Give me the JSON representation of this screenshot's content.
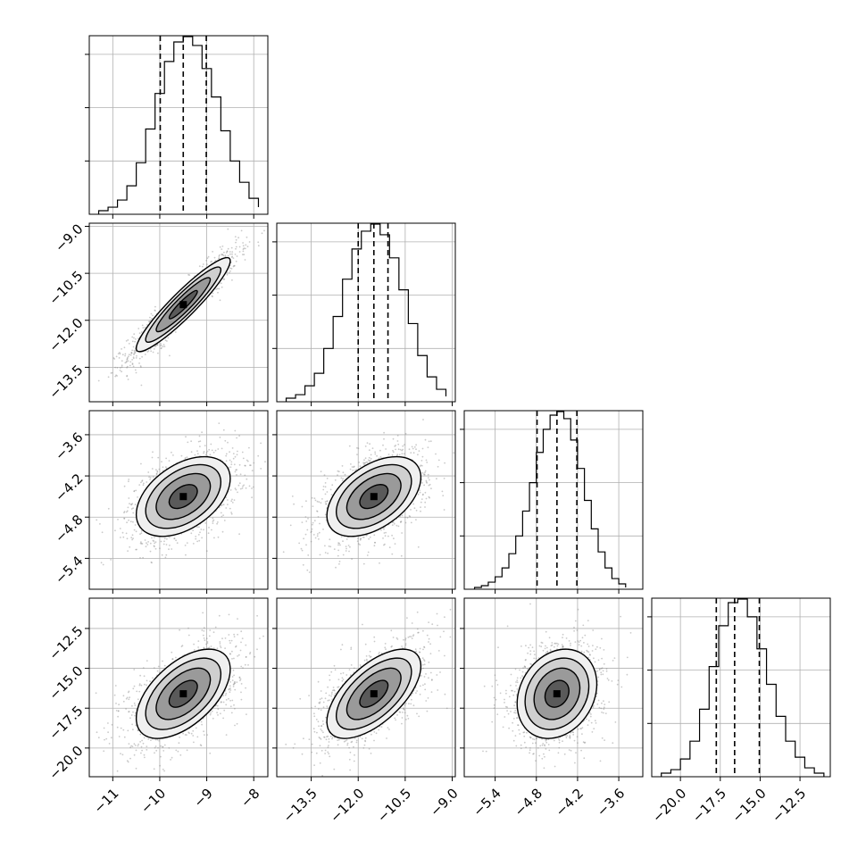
{
  "chart_data": {
    "type": "corner",
    "style": {
      "grid": true,
      "contour_levels": 4,
      "quantile_lines": "dashed"
    },
    "parameters": [
      {
        "index": 0,
        "range": [
          -11.5,
          -7.7
        ],
        "ticks": [
          -11,
          -10,
          -9,
          -8
        ],
        "tick_labels": [
          "−11",
          "−10",
          "−9",
          "−8"
        ],
        "mean": -9.5,
        "sd": 0.5,
        "quantiles": [
          -9.99,
          -9.5,
          -9.01
        ],
        "hist": {
          "edges": [
            -11.3,
            -11.1,
            -10.9,
            -10.7,
            -10.5,
            -10.3,
            -10.1,
            -9.9,
            -9.7,
            -9.5,
            -9.3,
            -9.1,
            -8.9,
            -8.7,
            -8.5,
            -8.3,
            -8.1,
            -7.9
          ],
          "counts": [
            2,
            4,
            8,
            16,
            29,
            48,
            68,
            86,
            97,
            100,
            95,
            82,
            66,
            47,
            30,
            18,
            9,
            4
          ]
        }
      },
      {
        "index": 1,
        "range": [
          -14.6,
          -8.9
        ],
        "ticks": [
          -13.5,
          -12.0,
          -10.5,
          -9.0
        ],
        "tick_labels": [
          "−13.5",
          "−12.0",
          "−10.5",
          "−9.0"
        ],
        "mean": -11.5,
        "sd": 0.75,
        "quantiles": [
          -12.0,
          -11.5,
          -11.05
        ],
        "hist": {
          "edges": [
            -14.3,
            -14.0,
            -13.7,
            -13.4,
            -13.1,
            -12.8,
            -12.5,
            -12.2,
            -11.9,
            -11.6,
            -11.3,
            -11.0,
            -10.7,
            -10.4,
            -10.1,
            -9.8,
            -9.5,
            -9.2
          ],
          "counts": [
            2,
            4,
            9,
            16,
            30,
            48,
            69,
            86,
            96,
            100,
            94,
            81,
            63,
            44,
            26,
            14,
            7,
            3
          ]
        }
      },
      {
        "index": 2,
        "range": [
          -5.85,
          -3.25
        ],
        "ticks": [
          -5.4,
          -4.8,
          -4.2,
          -3.6
        ],
        "tick_labels": [
          "−5.4",
          "−4.8",
          "−4.2",
          "−3.6"
        ],
        "mean": -4.5,
        "sd": 0.29,
        "quantiles": [
          -4.79,
          -4.5,
          -4.21
        ],
        "hist": {
          "edges": [
            -5.7,
            -5.6,
            -5.5,
            -5.4,
            -5.3,
            -5.2,
            -5.1,
            -5.0,
            -4.9,
            -4.8,
            -4.7,
            -4.6,
            -4.5,
            -4.4,
            -4.3,
            -4.2,
            -4.1,
            -4.0,
            -3.9,
            -3.8,
            -3.7,
            -3.6,
            -3.5
          ],
          "counts": [
            1,
            2,
            4,
            7,
            12,
            20,
            30,
            44,
            60,
            77,
            90,
            98,
            100,
            96,
            84,
            68,
            50,
            34,
            21,
            12,
            6,
            3,
            1
          ]
        }
      },
      {
        "index": 3,
        "range": [
          -21.8,
          -10.6
        ],
        "ticks": [
          -20.0,
          -17.5,
          -15.0,
          -12.5
        ],
        "tick_labels": [
          "−20.0",
          "−17.5",
          "−15.0",
          "−12.5"
        ],
        "mean": -16.6,
        "sd": 1.4,
        "quantiles": [
          -17.75,
          -16.6,
          -15.05
        ],
        "hist": {
          "edges": [
            -21.2,
            -20.6,
            -20.0,
            -19.4,
            -18.8,
            -18.2,
            -17.6,
            -17.0,
            -16.4,
            -15.8,
            -15.2,
            -14.6,
            -14.0,
            -13.4,
            -12.8,
            -12.2,
            -11.6,
            -11.0
          ],
          "counts": [
            2,
            4,
            10,
            20,
            38,
            62,
            85,
            98,
            100,
            90,
            72,
            52,
            34,
            20,
            11,
            5,
            2
          ]
        }
      }
    ],
    "pairs": [
      {
        "x": 0,
        "y": 1,
        "rho": 0.93
      },
      {
        "x": 0,
        "y": 2,
        "rho": 0.45
      },
      {
        "x": 1,
        "y": 2,
        "rho": 0.48
      },
      {
        "x": 0,
        "y": 3,
        "rho": 0.55
      },
      {
        "x": 1,
        "y": 3,
        "rho": 0.62
      },
      {
        "x": 2,
        "y": 3,
        "rho": 0.22
      }
    ]
  }
}
